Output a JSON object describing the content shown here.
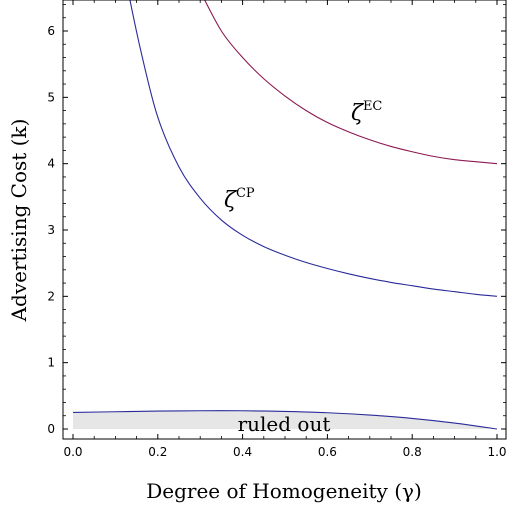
{
  "chart_data": {
    "type": "line",
    "title": "",
    "xlabel": "Degree of Homogeneity (γ)",
    "ylabel": "Advertising Cost (k)",
    "xlim": [
      0,
      1
    ],
    "ylim": [
      0,
      6.55
    ],
    "x_ticks": [
      "0.0",
      "0.2",
      "0.4",
      "0.6",
      "0.8",
      "1.0"
    ],
    "y_ticks": [
      "0",
      "1",
      "2",
      "3",
      "4",
      "5",
      "6"
    ],
    "x_tick_values": [
      0,
      0.2,
      0.4,
      0.6,
      0.8,
      1.0
    ],
    "y_tick_values": [
      0,
      1,
      2,
      3,
      4,
      5,
      6
    ],
    "grid": false,
    "series": [
      {
        "key": "EC",
        "label_symbol": "ζ",
        "label_sup": "EC",
        "color": "#8b1a52",
        "x": [
          0.3,
          0.35,
          0.4,
          0.45,
          0.5,
          0.55,
          0.6,
          0.65,
          0.7,
          0.75,
          0.8,
          0.85,
          0.9,
          0.95,
          1.0
        ],
        "y": [
          6.6,
          6.0,
          5.6,
          5.28,
          5.02,
          4.8,
          4.62,
          4.48,
          4.36,
          4.26,
          4.18,
          4.11,
          4.06,
          4.03,
          4.0
        ]
      },
      {
        "key": "CP",
        "label_symbol": "ζ",
        "label_sup": "CP",
        "color": "#2a2a9a",
        "x": [
          0.13,
          0.16,
          0.2,
          0.25,
          0.3,
          0.35,
          0.4,
          0.45,
          0.5,
          0.55,
          0.6,
          0.65,
          0.7,
          0.75,
          0.8,
          0.85,
          0.9,
          0.95,
          1.0
        ],
        "y": [
          6.6,
          5.7,
          4.7,
          3.95,
          3.48,
          3.15,
          2.92,
          2.75,
          2.62,
          2.51,
          2.42,
          2.34,
          2.27,
          2.21,
          2.16,
          2.11,
          2.07,
          2.03,
          2.0
        ]
      },
      {
        "key": "boundary",
        "color": "#2a2a9a",
        "x": [
          0.0,
          0.1,
          0.2,
          0.3,
          0.4,
          0.5,
          0.6,
          0.7,
          0.8,
          0.9,
          1.0
        ],
        "y": [
          0.25,
          0.26,
          0.27,
          0.275,
          0.275,
          0.265,
          0.245,
          0.21,
          0.16,
          0.09,
          0.0
        ]
      }
    ],
    "annotations": [
      {
        "text": "ruled out",
        "x": 0.46,
        "y": 0.08
      }
    ],
    "region_fill": "#e6e6e6"
  }
}
